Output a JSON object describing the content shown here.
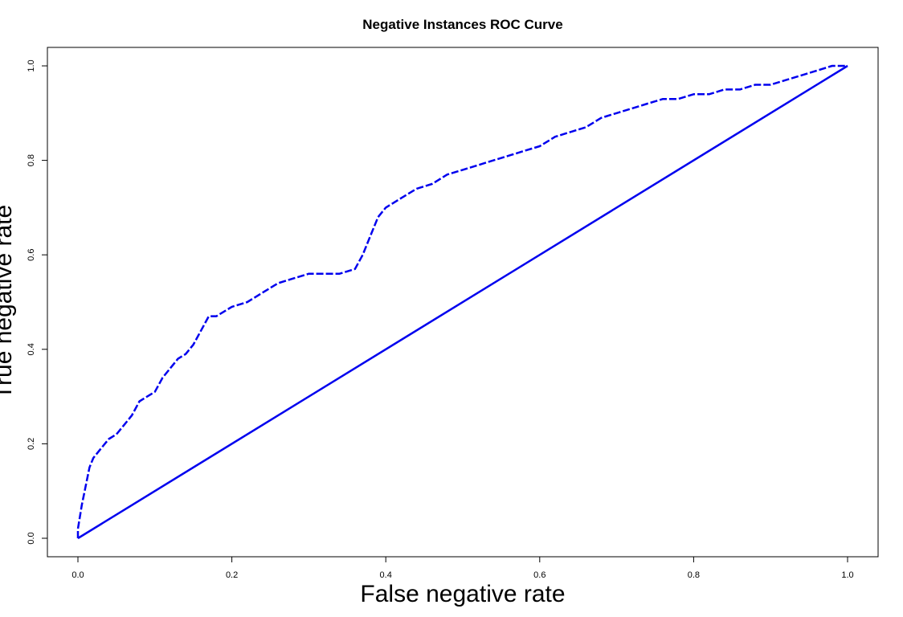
{
  "chart_data": {
    "type": "line",
    "title": "Negative Instances ROC Curve",
    "xlabel": "False negative rate",
    "ylabel": "True negative rate",
    "xlim": [
      0,
      1
    ],
    "ylim": [
      0,
      1
    ],
    "x_ticks": [
      "0.0",
      "0.2",
      "0.4",
      "0.6",
      "0.8",
      "1.0"
    ],
    "y_ticks": [
      "0.0",
      "0.2",
      "0.4",
      "0.6",
      "0.8",
      "1.0"
    ],
    "grid": false,
    "legend": "none",
    "color": "#0000ee",
    "series": [
      {
        "style": "dashed",
        "x": [
          0.0,
          0.0,
          0.005,
          0.01,
          0.015,
          0.02,
          0.03,
          0.04,
          0.05,
          0.06,
          0.07,
          0.08,
          0.09,
          0.1,
          0.11,
          0.12,
          0.13,
          0.14,
          0.15,
          0.16,
          0.17,
          0.18,
          0.2,
          0.22,
          0.24,
          0.26,
          0.28,
          0.3,
          0.32,
          0.34,
          0.36,
          0.37,
          0.38,
          0.39,
          0.4,
          0.42,
          0.44,
          0.46,
          0.48,
          0.5,
          0.52,
          0.54,
          0.56,
          0.58,
          0.6,
          0.62,
          0.64,
          0.66,
          0.68,
          0.7,
          0.72,
          0.74,
          0.76,
          0.78,
          0.8,
          0.82,
          0.84,
          0.86,
          0.88,
          0.9,
          0.92,
          0.94,
          0.96,
          0.98,
          1.0
        ],
        "y": [
          0.0,
          0.02,
          0.07,
          0.11,
          0.15,
          0.17,
          0.19,
          0.21,
          0.22,
          0.24,
          0.26,
          0.29,
          0.3,
          0.31,
          0.34,
          0.36,
          0.38,
          0.39,
          0.41,
          0.44,
          0.47,
          0.47,
          0.49,
          0.5,
          0.52,
          0.54,
          0.55,
          0.56,
          0.56,
          0.56,
          0.57,
          0.6,
          0.64,
          0.68,
          0.7,
          0.72,
          0.74,
          0.75,
          0.77,
          0.78,
          0.79,
          0.8,
          0.81,
          0.82,
          0.83,
          0.85,
          0.86,
          0.87,
          0.89,
          0.9,
          0.91,
          0.92,
          0.93,
          0.93,
          0.94,
          0.94,
          0.95,
          0.95,
          0.96,
          0.96,
          0.97,
          0.98,
          0.99,
          1.0,
          1.0
        ]
      },
      {
        "style": "solid",
        "x": [
          0.0,
          1.0
        ],
        "y": [
          0.0,
          1.0
        ]
      }
    ]
  }
}
